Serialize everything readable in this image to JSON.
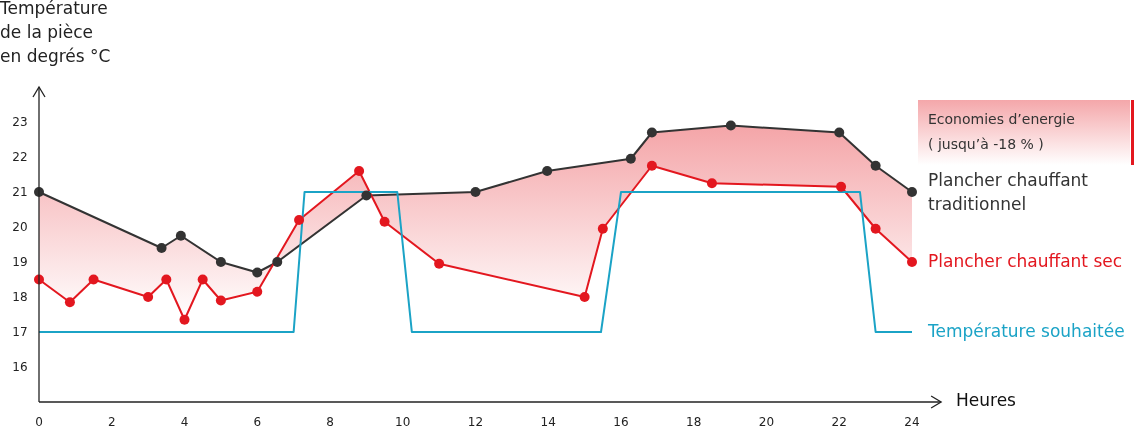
{
  "chart_data": {
    "type": "line",
    "ylabel": "Température\nde la pièce\nen degrés °C",
    "xlabel": "Heures",
    "xlim": [
      0,
      24.8
    ],
    "xticks": [
      0,
      2,
      4,
      6,
      8,
      10,
      12,
      14,
      16,
      18,
      20,
      22,
      24
    ],
    "ylim": [
      15,
      24
    ],
    "yticks": [
      16,
      17,
      18,
      19,
      20,
      21,
      22,
      23
    ],
    "grid": false,
    "marker": "circle",
    "annotations": [
      "Economies d’energie\n( jusqu’à -18 % )"
    ],
    "series": [
      {
        "name": "Plancher chauffant traditionnel",
        "color": "#333333",
        "x": [
          0,
          3.37,
          3.9,
          5,
          6,
          6.55,
          9,
          12,
          13.97,
          16.27,
          16.85,
          19.02,
          22,
          23,
          24
        ],
        "values": [
          21,
          19.4,
          19.75,
          19,
          18.7,
          19,
          20.9,
          21,
          21.6,
          21.95,
          22.7,
          22.9,
          22.7,
          21.75,
          21
        ]
      },
      {
        "name": "Plancher chauffant sec",
        "color": "#e3171f",
        "x": [
          0,
          0.85,
          1.5,
          3,
          3.5,
          4,
          4.5,
          5,
          6,
          7.15,
          8.8,
          9.5,
          11,
          15,
          15.5,
          16.85,
          18.5,
          22.05,
          23,
          24
        ],
        "values": [
          18.5,
          17.85,
          18.5,
          18,
          18.5,
          17.35,
          18.5,
          17.9,
          18.15,
          20.2,
          21.6,
          20.15,
          18.95,
          18,
          19.95,
          21.75,
          21.25,
          21.15,
          19.95,
          19
        ]
      },
      {
        "name": "Température souhaitée",
        "color": "#1ba3c6",
        "marker": "none",
        "x": [
          0,
          7,
          7.3,
          9.85,
          10.25,
          15.45,
          16,
          22.57,
          23,
          24
        ],
        "values": [
          17,
          17,
          21,
          21,
          17,
          17,
          21,
          21,
          17,
          17
        ]
      }
    ]
  }
}
